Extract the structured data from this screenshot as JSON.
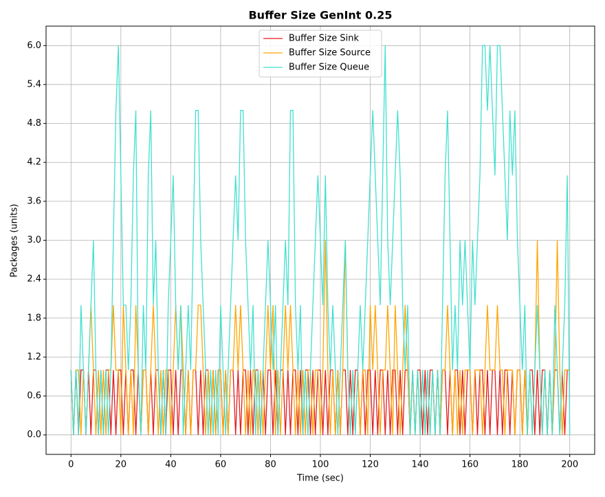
{
  "chart_data": {
    "type": "line",
    "title": "Buffer Size GenInt 0.25",
    "x_label": "Time (sec)",
    "y_label": "Packages (units)",
    "xlim": [
      -10,
      210
    ],
    "ylim": [
      -0.3,
      6.3
    ],
    "xticks": [
      0,
      20,
      40,
      60,
      80,
      100,
      120,
      140,
      160,
      180,
      200
    ],
    "yticks": [
      {
        "value": 0,
        "label": "0.0"
      },
      0.6,
      1.2,
      1.8,
      2.4,
      {
        "value": 3,
        "label": "3.0"
      },
      3.6,
      4.2,
      4.8,
      5.4,
      {
        "value": 6,
        "label": "6.0"
      }
    ],
    "grid": true,
    "legend": "upper center",
    "x": [
      0,
      1,
      2,
      3,
      4,
      5,
      6,
      7,
      8,
      9,
      10,
      11,
      12,
      13,
      14,
      15,
      16,
      17,
      18,
      19,
      20,
      21,
      22,
      23,
      24,
      25,
      26,
      27,
      28,
      29,
      30,
      31,
      32,
      33,
      34,
      35,
      36,
      37,
      38,
      39,
      40,
      41,
      42,
      43,
      44,
      45,
      46,
      47,
      48,
      49,
      50,
      51,
      52,
      53,
      54,
      55,
      56,
      57,
      58,
      59,
      60,
      61,
      62,
      63,
      64,
      65,
      66,
      67,
      68,
      69,
      70,
      71,
      72,
      73,
      74,
      75,
      76,
      77,
      78,
      79,
      80,
      81,
      82,
      83,
      84,
      85,
      86,
      87,
      88,
      89,
      90,
      91,
      92,
      93,
      94,
      95,
      96,
      97,
      98,
      99,
      100,
      101,
      102,
      103,
      104,
      105,
      106,
      107,
      108,
      109,
      110,
      111,
      112,
      113,
      114,
      115,
      116,
      117,
      118,
      119,
      120,
      121,
      122,
      123,
      124,
      125,
      126,
      127,
      128,
      129,
      130,
      131,
      132,
      133,
      134,
      135,
      136,
      137,
      138,
      139,
      140,
      141,
      142,
      143,
      144,
      145,
      146,
      147,
      148,
      149,
      150,
      151,
      152,
      153,
      154,
      155,
      156,
      157,
      158,
      159,
      160,
      161,
      162,
      163,
      164,
      165,
      166,
      167,
      168,
      169,
      170,
      171,
      172,
      173,
      174,
      175,
      176,
      177,
      178,
      179,
      180,
      181,
      182,
      183,
      184,
      185,
      186,
      187,
      188,
      189,
      190,
      191,
      192,
      193,
      194,
      195,
      196,
      197,
      198,
      199,
      200
    ],
    "series": [
      {
        "name": "Buffer Size Sink",
        "color": "#e41a1c",
        "values": [
          1,
          0,
          1,
          0,
          1,
          1,
          0,
          1,
          0,
          1,
          1,
          0,
          1,
          0,
          1,
          1,
          0,
          1,
          0,
          1,
          1,
          0,
          1,
          0,
          1,
          1,
          0,
          1,
          0,
          1,
          1,
          0,
          1,
          0,
          1,
          1,
          0,
          1,
          0,
          1,
          1,
          0,
          1,
          0,
          1,
          1,
          0,
          1,
          0,
          1,
          1,
          0,
          1,
          0,
          1,
          1,
          0,
          1,
          0,
          1,
          1,
          0,
          1,
          0,
          1,
          1,
          0,
          1,
          0,
          1,
          1,
          0,
          1,
          0,
          1,
          1,
          0,
          1,
          0,
          1,
          1,
          0,
          1,
          0,
          1,
          1,
          0,
          1,
          0,
          1,
          1,
          0,
          1,
          0,
          1,
          1,
          0,
          1,
          0,
          1,
          1,
          0,
          1,
          0,
          1,
          1,
          0,
          1,
          0,
          1,
          1,
          0,
          1,
          0,
          1,
          1,
          0,
          1,
          0,
          1,
          1,
          0,
          1,
          0,
          1,
          1,
          0,
          1,
          0,
          1,
          1,
          0,
          1,
          0,
          1,
          1,
          0,
          1,
          0,
          1,
          1,
          0,
          1,
          0,
          1,
          1,
          0,
          1,
          0,
          1,
          1,
          0,
          1,
          0,
          1,
          1,
          0,
          1,
          0,
          1,
          1,
          0,
          1,
          0,
          1,
          1,
          0,
          1,
          0,
          1,
          1,
          0,
          1,
          0,
          1,
          1,
          0,
          1,
          0,
          1,
          1,
          0,
          1,
          0,
          1,
          1,
          0,
          1,
          0,
          1,
          1,
          0,
          1,
          0,
          1,
          1,
          0,
          1,
          0,
          1,
          1
        ]
      },
      {
        "name": "Buffer Size Source",
        "color": "#ffa500",
        "values": [
          1,
          0,
          1,
          1,
          0,
          1,
          0,
          1,
          2,
          1,
          0,
          1,
          0,
          1,
          0,
          1,
          1,
          2,
          1,
          1,
          0,
          2,
          1,
          0,
          1,
          0,
          2,
          1,
          0,
          1,
          1,
          0,
          1,
          2,
          1,
          0,
          1,
          0,
          1,
          1,
          0,
          1,
          2,
          1,
          2,
          1,
          0,
          1,
          0,
          1,
          1,
          2,
          2,
          1,
          0,
          1,
          0,
          1,
          0,
          1,
          1,
          0,
          1,
          0,
          1,
          1,
          2,
          1,
          2,
          1,
          0,
          1,
          0,
          1,
          1,
          0,
          1,
          0,
          1,
          2,
          1,
          2,
          0,
          1,
          0,
          1,
          2,
          1,
          2,
          1,
          0,
          1,
          0,
          1,
          0,
          1,
          1,
          0,
          1,
          1,
          0,
          1,
          3,
          1,
          0,
          1,
          0,
          1,
          0,
          1,
          3,
          1,
          0,
          1,
          0,
          1,
          0,
          1,
          1,
          0,
          2,
          1,
          2,
          1,
          0,
          1,
          1,
          2,
          1,
          0,
          2,
          1,
          0,
          1,
          2,
          1,
          0,
          1,
          0,
          1,
          0,
          1,
          0,
          1,
          0,
          1,
          0,
          1,
          0,
          1,
          1,
          2,
          1,
          0,
          1,
          0,
          1,
          0,
          1,
          1,
          1,
          0,
          1,
          1,
          1,
          0,
          1,
          2,
          1,
          1,
          1,
          2,
          1,
          1,
          0,
          1,
          1,
          1,
          0,
          1,
          1,
          0,
          1,
          0,
          1,
          0,
          1,
          3,
          1,
          0,
          1,
          0,
          1,
          0,
          1,
          3,
          1,
          0,
          1,
          1,
          1
        ]
      },
      {
        "name": "Buffer Size Queue",
        "color": "#40e0d0",
        "values": [
          1,
          0,
          1,
          0,
          2,
          1,
          0,
          1,
          2,
          3,
          1,
          0,
          1,
          0,
          1,
          0,
          1,
          3,
          5,
          6,
          4,
          2,
          2,
          1,
          2,
          4,
          5,
          1,
          0,
          2,
          1,
          4,
          5,
          2,
          3,
          1,
          0,
          1,
          0,
          2,
          3,
          4,
          2,
          1,
          2,
          0,
          1,
          2,
          1,
          3,
          5,
          5,
          3,
          2,
          1,
          0,
          1,
          0,
          1,
          0,
          2,
          1,
          0,
          1,
          2,
          3,
          4,
          3,
          5,
          5,
          3,
          2,
          1,
          2,
          0,
          1,
          0,
          1,
          2,
          3,
          2,
          1,
          2,
          0,
          1,
          2,
          3,
          2,
          5,
          5,
          2,
          1,
          2,
          0,
          1,
          0,
          1,
          2,
          3,
          4,
          3,
          2,
          4,
          2,
          1,
          2,
          1,
          0,
          1,
          2,
          3,
          1,
          0,
          1,
          0,
          1,
          2,
          1,
          2,
          3,
          4,
          5,
          4,
          3,
          2,
          4,
          6,
          3,
          2,
          3,
          4,
          5,
          4,
          2,
          1,
          2,
          0,
          1,
          0,
          1,
          0,
          1,
          0,
          1,
          0,
          1,
          0,
          1,
          0,
          2,
          4,
          5,
          3,
          1,
          2,
          1,
          3,
          2,
          3,
          2,
          1,
          3,
          2,
          3,
          4,
          6,
          6,
          5,
          6,
          5,
          4,
          6,
          6,
          5,
          4,
          3,
          5,
          4,
          5,
          3,
          2,
          1,
          2,
          0,
          1,
          0,
          1,
          2,
          1,
          0,
          1,
          0,
          1,
          0,
          2,
          1,
          0,
          1,
          2,
          4,
          0
        ]
      }
    ]
  }
}
